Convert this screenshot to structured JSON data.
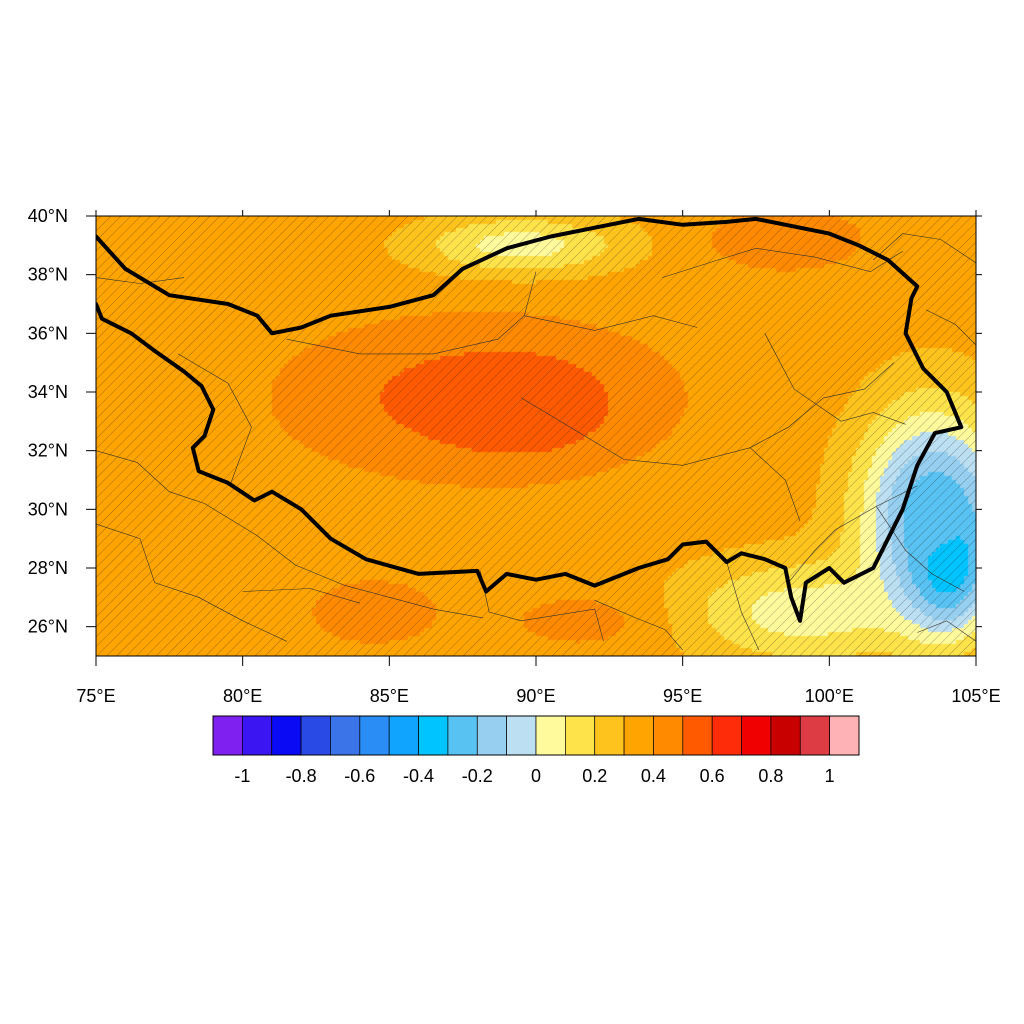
{
  "map": {
    "lon_range": [
      75,
      105
    ],
    "lat_range": [
      25,
      40
    ],
    "lon_ticks": [
      {
        "value": 75,
        "label": "75°E"
      },
      {
        "value": 80,
        "label": "80°E"
      },
      {
        "value": 85,
        "label": "85°E"
      },
      {
        "value": 90,
        "label": "90°E"
      },
      {
        "value": 95,
        "label": "95°E"
      },
      {
        "value": 100,
        "label": "100°E"
      },
      {
        "value": 105,
        "label": "105°E"
      }
    ],
    "lat_ticks": [
      {
        "value": 26,
        "label": "26°N"
      },
      {
        "value": 28,
        "label": "28°N"
      },
      {
        "value": 30,
        "label": "30°N"
      },
      {
        "value": 32,
        "label": "32°N"
      },
      {
        "value": 34,
        "label": "34°N"
      },
      {
        "value": 36,
        "label": "36°N"
      },
      {
        "value": 38,
        "label": "38°N"
      },
      {
        "value": 40,
        "label": "40°N"
      }
    ],
    "field": {
      "type": "filled-contour",
      "hatching": "significance stippling (diagonal hatch)",
      "background_level": 0.35,
      "features": [
        {
          "lon": 89.5,
          "lat": 33.5,
          "value": 0.7,
          "spread_lon": 2.5,
          "spread_lat": 1.4
        },
        {
          "lon": 88,
          "lat": 33.8,
          "value": 0.55,
          "spread_lon": 6,
          "spread_lat": 2.5
        },
        {
          "lon": 84.5,
          "lat": 26.5,
          "value": 0.5,
          "spread_lon": 2,
          "spread_lat": 1
        },
        {
          "lon": 92,
          "lat": 26.2,
          "value": 0.45,
          "spread_lon": 3,
          "spread_lat": 1
        },
        {
          "lon": 89.5,
          "lat": 39,
          "value": 0.05,
          "spread_lon": 3.5,
          "spread_lat": 1
        },
        {
          "lon": 98.5,
          "lat": 39.2,
          "value": 0.5,
          "spread_lon": 2.5,
          "spread_lat": 1
        },
        {
          "lon": 99,
          "lat": 26.5,
          "value": 0.05,
          "spread_lon": 4,
          "spread_lat": 1.8
        },
        {
          "lon": 104,
          "lat": 28.5,
          "value": -0.65,
          "spread_lon": 1.4,
          "spread_lat": 2.2
        },
        {
          "lon": 103.5,
          "lat": 30,
          "value": -0.25,
          "spread_lon": 2.5,
          "spread_lat": 3.5
        }
      ]
    },
    "boundary": {
      "name": "Tibetan Plateau outline",
      "path": [
        [
          75,
          39.3
        ],
        [
          76,
          38.2
        ],
        [
          77.5,
          37.3
        ],
        [
          79.5,
          37
        ],
        [
          80.5,
          36.6
        ],
        [
          81,
          36
        ],
        [
          82,
          36.2
        ],
        [
          83,
          36.6
        ],
        [
          85,
          36.9
        ],
        [
          86.5,
          37.3
        ],
        [
          87.5,
          38.2
        ],
        [
          89,
          38.9
        ],
        [
          90.5,
          39.3
        ],
        [
          92,
          39.6
        ],
        [
          93.5,
          39.9
        ],
        [
          95,
          39.7
        ],
        [
          96.5,
          39.8
        ],
        [
          97.5,
          39.9
        ],
        [
          99,
          39.6
        ],
        [
          100,
          39.4
        ],
        [
          101,
          39
        ],
        [
          102,
          38.5
        ],
        [
          103,
          37.6
        ],
        [
          102.8,
          37.2
        ],
        [
          102.6,
          36
        ],
        [
          103.2,
          34.8
        ],
        [
          104,
          34
        ],
        [
          104.5,
          32.8
        ],
        [
          103.6,
          32.6
        ],
        [
          103,
          31.5
        ],
        [
          102.5,
          30
        ],
        [
          102,
          29
        ],
        [
          101.5,
          28
        ],
        [
          100.5,
          27.5
        ],
        [
          100,
          28
        ],
        [
          99.2,
          27.5
        ],
        [
          99,
          26.2
        ],
        [
          98.7,
          27
        ],
        [
          98.5,
          28
        ],
        [
          97.8,
          28.3
        ],
        [
          97,
          28.5
        ],
        [
          96.5,
          28.2
        ],
        [
          95.8,
          28.9
        ],
        [
          95,
          28.8
        ],
        [
          94.5,
          28.3
        ],
        [
          93.5,
          28
        ],
        [
          92,
          27.4
        ],
        [
          91,
          27.8
        ],
        [
          90,
          27.6
        ],
        [
          89,
          27.8
        ],
        [
          88.3,
          27.2
        ],
        [
          88,
          27.9
        ],
        [
          86,
          27.8
        ],
        [
          84.2,
          28.3
        ],
        [
          83,
          29
        ],
        [
          82,
          30
        ],
        [
          81,
          30.6
        ],
        [
          80.4,
          30.3
        ],
        [
          79.5,
          30.9
        ],
        [
          78.5,
          31.3
        ],
        [
          78.3,
          32.1
        ],
        [
          78.7,
          32.5
        ],
        [
          79,
          33.4
        ],
        [
          78.6,
          34.2
        ],
        [
          78,
          34.7
        ],
        [
          77,
          35.4
        ],
        [
          76.2,
          36
        ],
        [
          75.2,
          36.5
        ],
        [
          75,
          37
        ]
      ]
    },
    "minor_borders": [
      [
        [
          75,
          37.9
        ],
        [
          76.5,
          37.7
        ],
        [
          78,
          37.9
        ]
      ],
      [
        [
          77.8,
          35.3
        ],
        [
          79.5,
          34.3
        ],
        [
          80.3,
          32.8
        ],
        [
          79.6,
          30.9
        ]
      ],
      [
        [
          75,
          32
        ],
        [
          76.4,
          31.6
        ],
        [
          77.5,
          30.6
        ],
        [
          78.7,
          30.2
        ],
        [
          80.5,
          29.1
        ],
        [
          81.8,
          28.1
        ],
        [
          83.5,
          27.4
        ],
        [
          85,
          27
        ],
        [
          86.5,
          26.6
        ],
        [
          88.2,
          26.3
        ]
      ],
      [
        [
          75,
          29.5
        ],
        [
          76.5,
          29
        ],
        [
          77,
          27.5
        ],
        [
          78.5,
          27
        ],
        [
          80,
          26.2
        ],
        [
          81.5,
          25.5
        ]
      ],
      [
        [
          80,
          27.2
        ],
        [
          82.3,
          27.3
        ],
        [
          84,
          26.8
        ]
      ],
      [
        [
          88.1,
          27.9
        ],
        [
          88.4,
          26.5
        ],
        [
          89.5,
          26.2
        ],
        [
          92,
          26.6
        ],
        [
          92.3,
          25.5
        ]
      ],
      [
        [
          92,
          26.9
        ],
        [
          93.4,
          26.3
        ],
        [
          94.4,
          25.9
        ],
        [
          95,
          25.2
        ]
      ],
      [
        [
          96.5,
          28.2
        ],
        [
          97,
          26.5
        ],
        [
          97.6,
          25.2
        ]
      ],
      [
        [
          81.5,
          35.8
        ],
        [
          84,
          35.3
        ],
        [
          86.5,
          35.3
        ],
        [
          88.7,
          35.8
        ],
        [
          89.6,
          36.6
        ],
        [
          90,
          38.1
        ]
      ],
      [
        [
          89.6,
          36.6
        ],
        [
          92,
          36.1
        ],
        [
          94,
          36.6
        ],
        [
          95.5,
          36.2
        ]
      ],
      [
        [
          94.3,
          37.9
        ],
        [
          96.2,
          38.5
        ],
        [
          97.5,
          38.9
        ],
        [
          99.5,
          38.6
        ],
        [
          101.4,
          38.1
        ],
        [
          102.5,
          38.8
        ]
      ],
      [
        [
          97.8,
          36
        ],
        [
          98.8,
          34.1
        ],
        [
          100.4,
          33
        ],
        [
          101.5,
          33.3
        ],
        [
          102.6,
          32.9
        ]
      ],
      [
        [
          89.5,
          33.8
        ],
        [
          91.5,
          32.6
        ],
        [
          93,
          31.7
        ],
        [
          95,
          31.5
        ],
        [
          97.3,
          32.1
        ],
        [
          98.5,
          31
        ],
        [
          99,
          29.6
        ]
      ],
      [
        [
          97.3,
          32.1
        ],
        [
          98.6,
          32.8
        ],
        [
          99.8,
          33.8
        ],
        [
          101.2,
          34.1
        ],
        [
          102.2,
          35
        ]
      ],
      [
        [
          98.6,
          27.5
        ],
        [
          99.5,
          28.6
        ],
        [
          100.2,
          29.3
        ],
        [
          101.6,
          30.1
        ],
        [
          103,
          30.8
        ]
      ],
      [
        [
          101.6,
          30.1
        ],
        [
          102.6,
          28.6
        ],
        [
          103.5,
          27.8
        ],
        [
          104.6,
          27.2
        ]
      ],
      [
        [
          103,
          25.8
        ],
        [
          104,
          26.2
        ],
        [
          105,
          25.5
        ]
      ],
      [
        [
          103.3,
          36.8
        ],
        [
          104.3,
          36.3
        ],
        [
          105,
          35.6
        ]
      ],
      [
        [
          101.5,
          38.5
        ],
        [
          102.5,
          39.4
        ],
        [
          103.8,
          39.2
        ],
        [
          105,
          38.4
        ]
      ]
    ]
  },
  "colorbar": {
    "colors": [
      "#8020f0",
      "#3b16f2",
      "#0a0af5",
      "#2a4ae6",
      "#3a74e8",
      "#2a8cf5",
      "#10a4ff",
      "#00c4ff",
      "#58c2f2",
      "#96cff0",
      "#bcdff2",
      "#fffa9c",
      "#ffe34a",
      "#ffc31e",
      "#ffa400",
      "#ff8a00",
      "#ff5a00",
      "#ff2c0a",
      "#f00000",
      "#c80000",
      "#de3c44",
      "#ffb2b6"
    ],
    "levels": [
      -1,
      -0.9,
      -0.8,
      -0.7,
      -0.6,
      -0.5,
      -0.4,
      -0.3,
      -0.2,
      -0.1,
      0,
      0.1,
      0.2,
      0.3,
      0.4,
      0.5,
      0.6,
      0.7,
      0.8,
      0.9,
      1
    ],
    "labels": [
      {
        "level": -1,
        "text": "-1"
      },
      {
        "level": -0.8,
        "text": "-0.8"
      },
      {
        "level": -0.6,
        "text": "-0.6"
      },
      {
        "level": -0.4,
        "text": "-0.4"
      },
      {
        "level": -0.2,
        "text": "-0.2"
      },
      {
        "level": 0,
        "text": "0"
      },
      {
        "level": 0.2,
        "text": "0.2"
      },
      {
        "level": 0.4,
        "text": "0.4"
      },
      {
        "level": 0.6,
        "text": "0.6"
      },
      {
        "level": 0.8,
        "text": "0.8"
      },
      {
        "level": 1,
        "text": "1"
      }
    ]
  }
}
